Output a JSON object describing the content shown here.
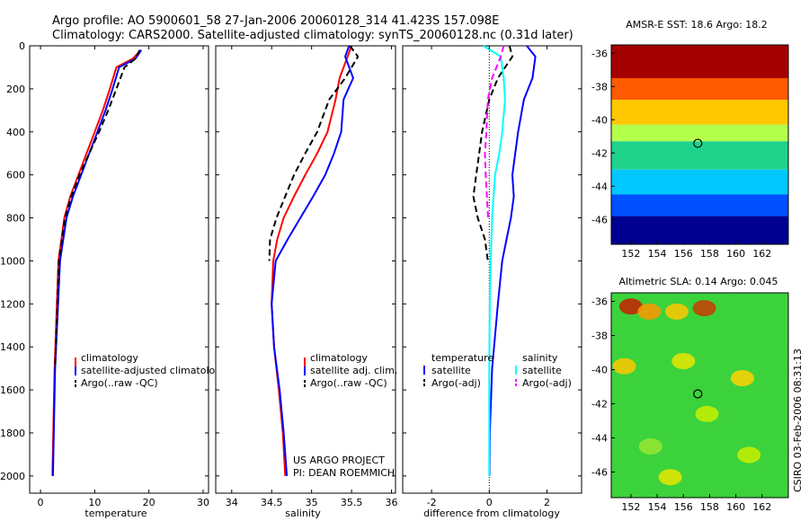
{
  "header": {
    "line1": "Argo profile: AO 5900601_58 27-Jan-2006 20060128_314 41.423S 157.098E",
    "line2": "Climatology: CARS2000. Satellite-adjusted climatology: synTS_20060128.nc (0.31d later)"
  },
  "credits": {
    "project": "US ARGO PROJECT",
    "pi": "PI: DEAN ROEMMICH",
    "csiro": "CSIRO 03-Feb-2006 08:31:13"
  },
  "colors": {
    "climatology": "#ff0000",
    "satellite": "#0000ff",
    "argo": "#000000",
    "salinity_satellite": "#00ffff",
    "salinity_argo": "#ff00ff"
  },
  "chart_data": [
    {
      "type": "line",
      "name": "temperature-profile",
      "xlabel": "temperature",
      "ylabel": "",
      "xlim": [
        -2,
        31
      ],
      "ylim": [
        2080,
        0
      ],
      "xticks": [
        0,
        10,
        20,
        30
      ],
      "yticks": [
        0,
        200,
        400,
        600,
        800,
        1000,
        1200,
        1400,
        1600,
        1800,
        2000
      ],
      "legend": [
        "climatology",
        "satellite-adjusted climatology",
        "Argo(..raw -QC)"
      ],
      "series": [
        {
          "name": "climatology",
          "color": "#ff0000",
          "dash": "solid",
          "x": [
            18.5,
            17.0,
            14.0,
            12.8,
            11.5,
            10.0,
            8.5,
            7.0,
            5.5,
            4.4,
            3.3,
            2.6,
            2.2
          ],
          "y": [
            20,
            60,
            100,
            200,
            300,
            400,
            500,
            600,
            700,
            800,
            1000,
            1500,
            2000
          ]
        },
        {
          "name": "satellite-adjusted climatology",
          "color": "#0000ff",
          "dash": "solid",
          "x": [
            18.6,
            17.5,
            14.5,
            13.3,
            12.0,
            10.5,
            9.0,
            7.5,
            6.0,
            4.8,
            3.6,
            2.7,
            2.3
          ],
          "y": [
            20,
            60,
            100,
            200,
            300,
            400,
            500,
            600,
            700,
            800,
            1000,
            1500,
            2000
          ]
        },
        {
          "name": "Argo(..raw -QC)",
          "color": "#000000",
          "dash": "dashed",
          "x": [
            18.3,
            17.5,
            15.5,
            14.0,
            12.5,
            10.8,
            9.0,
            7.2,
            5.7,
            4.5,
            3.4,
            2.7
          ],
          "y": [
            20,
            60,
            100,
            200,
            300,
            400,
            500,
            600,
            700,
            800,
            1000,
            1500
          ]
        }
      ]
    },
    {
      "type": "line",
      "name": "salinity-profile",
      "xlabel": "salinity",
      "ylabel": "",
      "xlim": [
        33.8,
        36.05
      ],
      "ylim": [
        2080,
        0
      ],
      "xticks": [
        34,
        34.5,
        35,
        35.5,
        36
      ],
      "xtick_labels": [
        "34",
        "34.5",
        "35",
        "35.5",
        "36"
      ],
      "legend": [
        "climatology",
        "satellite adj. clim.",
        "Argo(..raw -QC)"
      ],
      "series": [
        {
          "name": "climatology",
          "color": "#ff0000",
          "dash": "solid",
          "x": [
            35.5,
            35.45,
            35.35,
            35.3,
            35.2,
            35.07,
            34.92,
            34.78,
            34.65,
            34.57,
            34.52,
            34.5,
            34.53,
            34.59,
            34.64,
            34.67
          ],
          "y": [
            0,
            50,
            150,
            250,
            400,
            500,
            600,
            700,
            800,
            900,
            1000,
            1200,
            1400,
            1600,
            1800,
            2000
          ]
        },
        {
          "name": "satellite adj. clim.",
          "color": "#0000ff",
          "dash": "solid",
          "x": [
            35.47,
            35.42,
            35.52,
            35.4,
            35.37,
            35.28,
            35.17,
            35.02,
            34.86,
            34.7,
            34.55,
            34.5,
            34.53,
            34.6,
            34.65,
            34.69
          ],
          "y": [
            0,
            50,
            150,
            250,
            400,
            500,
            600,
            700,
            800,
            900,
            1000,
            1200,
            1400,
            1600,
            1800,
            2000
          ]
        },
        {
          "name": "Argo(..raw -QC)",
          "color": "#000000",
          "dash": "dashed",
          "x": [
            35.48,
            35.58,
            35.42,
            35.22,
            35.07,
            34.92,
            34.78,
            34.67,
            34.56,
            34.48,
            34.47
          ],
          "y": [
            0,
            50,
            150,
            250,
            400,
            500,
            600,
            700,
            800,
            900,
            1000
          ]
        }
      ]
    },
    {
      "type": "line",
      "name": "difference-profile",
      "xlabel": "difference from climatology",
      "ylabel": "",
      "xlim": [
        -3,
        3.2
      ],
      "ylim": [
        2080,
        0
      ],
      "xticks": [
        -2,
        0,
        2
      ],
      "legend": [
        "temperature",
        "satellite",
        "Argo(-adj)",
        "salinity",
        "satellite",
        "Argo(-adj)"
      ],
      "series": [
        {
          "name": "satellite",
          "color": "#0000ff",
          "dash": "solid",
          "x": [
            1.3,
            1.6,
            1.5,
            1.2,
            1.0,
            0.9,
            0.8,
            0.85,
            0.75,
            0.6,
            0.45,
            0.3,
            0.1,
            0.02,
            0.01
          ],
          "y": [
            0,
            50,
            150,
            250,
            400,
            500,
            600,
            700,
            800,
            900,
            1000,
            1200,
            1500,
            1800,
            2000
          ]
        },
        {
          "name": "Argo(-adj)",
          "color": "#000000",
          "dash": "dashed",
          "x": [
            0.7,
            0.8,
            0.3,
            0.0,
            -0.25,
            -0.35,
            -0.45,
            -0.55,
            -0.4,
            -0.15,
            -0.05
          ],
          "y": [
            0,
            50,
            150,
            250,
            400,
            500,
            600,
            700,
            800,
            900,
            1000
          ]
        },
        {
          "name": "satellite",
          "color": "#00ffff",
          "dash": "solid",
          "x": [
            -0.2,
            0.4,
            0.5,
            0.55,
            0.45,
            0.35,
            0.2,
            0.15,
            0.1,
            0.05,
            0.02,
            0.0,
            0.0
          ],
          "y": [
            0,
            50,
            150,
            250,
            400,
            500,
            600,
            700,
            800,
            1000,
            1200,
            1500,
            2000
          ]
        },
        {
          "name": "Argo(-adj)",
          "color": "#ff00ff",
          "dash": "dashed",
          "x": [
            0.5,
            0.4,
            0.1,
            -0.05,
            -0.1,
            -0.15,
            -0.12,
            -0.08,
            -0.04
          ],
          "y": [
            0,
            50,
            150,
            250,
            400,
            500,
            600,
            700,
            800
          ]
        }
      ]
    },
    {
      "type": "heatmap",
      "name": "sst-map",
      "title": "AMSR-E SST: 18.6 Argo: 18.2",
      "xlim": [
        150.5,
        164
      ],
      "ylim": [
        -47.5,
        -35.5
      ],
      "xticks": [
        152,
        154,
        156,
        158,
        160,
        162
      ],
      "yticks": [
        -36,
        -38,
        -40,
        -42,
        -44,
        -46
      ],
      "marker": {
        "lon": 157.098,
        "lat": -41.423
      },
      "bands": [
        {
          "lat_from": -35.5,
          "lat_to": -37.5,
          "color": "#a50000"
        },
        {
          "lat_from": -37.5,
          "lat_to": -38.8,
          "color": "#ff5a00"
        },
        {
          "lat_from": -38.8,
          "lat_to": -40.3,
          "color": "#ffc800"
        },
        {
          "lat_from": -40.3,
          "lat_to": -41.3,
          "color": "#b4ff4b"
        },
        {
          "lat_from": -41.3,
          "lat_to": -43.0,
          "color": "#1ed28c"
        },
        {
          "lat_from": -43.0,
          "lat_to": -44.5,
          "color": "#00c8ff"
        },
        {
          "lat_from": -44.5,
          "lat_to": -45.8,
          "color": "#0050ff"
        },
        {
          "lat_from": -45.8,
          "lat_to": -47.5,
          "color": "#000090"
        }
      ]
    },
    {
      "type": "heatmap",
      "name": "sla-map",
      "title": "Altimetric SLA: 0.14 Argo: 0.045",
      "xlim": [
        150.5,
        164
      ],
      "ylim": [
        -47.5,
        -35.5
      ],
      "xticks": [
        152,
        154,
        156,
        158,
        160,
        162
      ],
      "yticks": [
        -36,
        -38,
        -40,
        -42,
        -44,
        -46
      ],
      "marker": {
        "lon": 157.098,
        "lat": -41.423
      },
      "base_color": "#3cd23c",
      "blobs": [
        {
          "lon": 152.0,
          "lat": -36.3,
          "color": "#c81e00"
        },
        {
          "lon": 153.4,
          "lat": -36.6,
          "color": "#ff9600"
        },
        {
          "lon": 157.6,
          "lat": -36.4,
          "color": "#c83c00"
        },
        {
          "lon": 155.5,
          "lat": -36.6,
          "color": "#ffc800"
        },
        {
          "lon": 151.5,
          "lat": -39.8,
          "color": "#ffc800"
        },
        {
          "lon": 156.0,
          "lat": -39.5,
          "color": "#e6e600"
        },
        {
          "lon": 160.5,
          "lat": -40.5,
          "color": "#ffd200"
        },
        {
          "lon": 157.8,
          "lat": -42.6,
          "color": "#c8f000"
        },
        {
          "lon": 153.5,
          "lat": -44.5,
          "color": "#96e632"
        },
        {
          "lon": 161.0,
          "lat": -45.0,
          "color": "#c8f000"
        },
        {
          "lon": 155.0,
          "lat": -46.3,
          "color": "#e6e600"
        }
      ]
    }
  ]
}
